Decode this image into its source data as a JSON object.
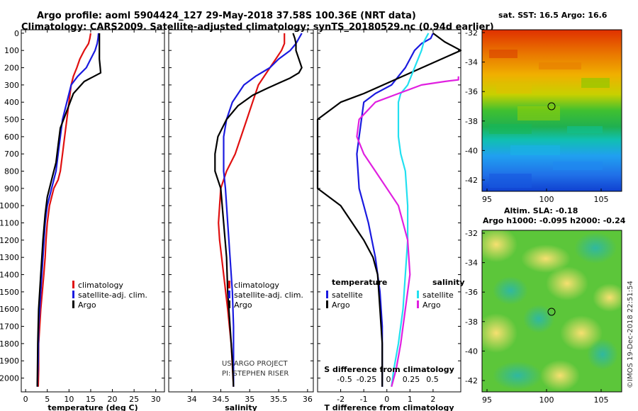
{
  "header": {
    "line1": "Argo profile: aoml 5904424_127 29-May-2018 37.58S 100.36E (NRT data)",
    "line2": "Climatology: CARS2009. Satellite-adjusted climatology: synTS_20180529.nc (0.94d earlier)"
  },
  "credit": {
    "line1": "US ARGO PROJECT",
    "line2": "PI: STEPHEN RISER",
    "watermark": "©IMOS 19-Dec-2018 22:51:54"
  },
  "colors": {
    "climatology": "#e01010",
    "satellite": "#1a1adf",
    "argo": "#000000",
    "cyan": "#22e0f0",
    "magenta": "#e020e0"
  },
  "chart_data": [
    {
      "id": "temperature",
      "type": "line",
      "xlabel": "temperature (deg C)",
      "xlim": [
        -1,
        32
      ],
      "ylim": [
        2080,
        -20
      ],
      "xticks": [
        0,
        5,
        10,
        15,
        20,
        25,
        30
      ],
      "yticks": [
        0,
        100,
        200,
        300,
        400,
        500,
        600,
        700,
        800,
        900,
        1000,
        1100,
        1200,
        1300,
        1400,
        1500,
        1600,
        1700,
        1800,
        1900,
        2000
      ],
      "legend": [
        "climatology",
        "satellite-adj. clim.",
        "Argo"
      ],
      "series": [
        {
          "name": "climatology",
          "color": "climatology",
          "x": [
            15,
            14.8,
            14.5,
            13.5,
            12.5,
            11.8,
            11,
            10.5,
            10,
            9.5,
            9,
            8.5,
            8,
            7.5,
            6.5,
            5.5,
            5,
            4.7,
            4.5,
            4.2,
            3.5,
            3,
            3,
            2.9
          ],
          "y": [
            0,
            30,
            60,
            100,
            150,
            200,
            250,
            300,
            400,
            500,
            600,
            700,
            800,
            850,
            900,
            1000,
            1100,
            1200,
            1300,
            1400,
            1600,
            1800,
            1950,
            2050
          ]
        },
        {
          "name": "satellite-adj. clim.",
          "color": "satellite",
          "x": [
            16.8,
            16.7,
            16.5,
            16,
            15,
            14,
            12,
            10.5,
            9.5,
            8.5,
            8,
            7.5,
            7,
            6.5,
            6,
            5,
            4.5,
            4,
            3.5,
            3,
            2.9,
            2.7
          ],
          "y": [
            0,
            30,
            60,
            100,
            150,
            200,
            250,
            300,
            400,
            500,
            600,
            700,
            800,
            850,
            900,
            1000,
            1100,
            1300,
            1500,
            1700,
            1900,
            2050
          ]
        },
        {
          "name": "Argo",
          "color": "argo",
          "x": [
            17,
            17,
            17,
            17,
            17.2,
            17.3,
            13.5,
            11,
            9.5,
            8,
            7.5,
            7,
            6,
            5,
            4.5,
            4,
            3.5,
            3,
            2.8,
            2.7
          ],
          "y": [
            0,
            40,
            100,
            150,
            200,
            230,
            280,
            350,
            450,
            550,
            650,
            750,
            850,
            950,
            1050,
            1200,
            1400,
            1600,
            1800,
            2050
          ]
        }
      ]
    },
    {
      "id": "salinity",
      "type": "line",
      "xlabel": "salinity",
      "xlim": [
        33.6,
        36.1
      ],
      "ylim": [
        2080,
        -20
      ],
      "xticks": [
        34,
        34.5,
        35,
        35.5,
        36
      ],
      "legend": [
        "climatology",
        "satellite-adj. clim.",
        "Argo"
      ],
      "series": [
        {
          "name": "climatology",
          "color": "climatology",
          "x": [
            35.6,
            35.6,
            35.6,
            35.55,
            35.45,
            35.35,
            35.25,
            35.15,
            35.05,
            34.95,
            34.85,
            34.75,
            34.6,
            34.5,
            34.48,
            34.46,
            34.48,
            34.55,
            34.62,
            34.68,
            34.72
          ],
          "y": [
            0,
            30,
            60,
            100,
            150,
            200,
            250,
            300,
            400,
            500,
            600,
            700,
            800,
            900,
            1000,
            1100,
            1200,
            1400,
            1600,
            1800,
            2050
          ]
        },
        {
          "name": "satellite-adj. clim.",
          "color": "satellite",
          "x": [
            35.9,
            35.85,
            35.8,
            35.7,
            35.5,
            35.35,
            35.1,
            34.9,
            34.7,
            34.6,
            34.55,
            34.55,
            34.55,
            34.58,
            34.6,
            34.62,
            34.66,
            34.7,
            34.72,
            34.72
          ],
          "y": [
            0,
            30,
            60,
            100,
            150,
            200,
            250,
            300,
            400,
            500,
            600,
            700,
            800,
            900,
            1000,
            1100,
            1300,
            1500,
            1700,
            2050
          ]
        },
        {
          "name": "Argo",
          "color": "argo",
          "x": [
            35.75,
            35.78,
            35.8,
            35.8,
            35.85,
            35.9,
            35.85,
            35.7,
            35.5,
            35.3,
            35.05,
            34.8,
            34.6,
            34.45,
            34.4,
            34.4,
            34.5,
            34.55,
            34.6,
            34.62,
            34.66,
            34.7,
            34.72
          ],
          "y": [
            0,
            30,
            60,
            100,
            150,
            200,
            230,
            260,
            290,
            320,
            360,
            420,
            500,
            600,
            700,
            800,
            900,
            1100,
            1300,
            1500,
            1700,
            1900,
            2050
          ]
        }
      ]
    },
    {
      "id": "difference",
      "type": "line",
      "xlabel": "T difference from climatology",
      "toplabel": "S difference from climatology",
      "xlim": [
        -3,
        3.2
      ],
      "ylim": [
        2080,
        -20
      ],
      "xticks": [
        -2,
        -1,
        0,
        1,
        2
      ],
      "s_ticks": [
        "-0.5",
        "-0.25",
        "0",
        "0.25",
        "0.5"
      ],
      "legend_title_left": "temperature",
      "legend_title_right": "salinity",
      "legend": [
        "satellite",
        "Argo",
        "satellite",
        "Argo"
      ],
      "series": [
        {
          "name": "T satellite",
          "color": "satellite",
          "x": [
            2,
            1.9,
            1.5,
            1.2,
            1,
            0.8,
            0.5,
            0.2,
            -0.5,
            -1,
            -1.1,
            -1.2,
            -1.3,
            -1.25,
            -1.2,
            -1,
            -0.8,
            -0.5,
            -0.3,
            -0.2,
            -0.2
          ],
          "y": [
            0,
            30,
            60,
            100,
            150,
            200,
            250,
            300,
            350,
            400,
            500,
            600,
            700,
            800,
            900,
            1000,
            1100,
            1300,
            1500,
            1700,
            2050
          ]
        },
        {
          "name": "T Argo",
          "color": "argo",
          "x": [
            2,
            2.5,
            3.2,
            -1,
            -2,
            -3,
            -3,
            -2,
            -1.5,
            -1,
            -0.6,
            -0.4,
            -0.3,
            -0.2,
            -0.2
          ],
          "y": [
            0,
            50,
            100,
            350,
            400,
            500,
            900,
            1000,
            1100,
            1200,
            1300,
            1400,
            1600,
            1800,
            2050
          ]
        },
        {
          "name": "S satellite",
          "color": "cyan",
          "x": [
            1.8,
            1.6,
            1.5,
            1.2,
            0.9,
            0.6,
            0.5,
            0.5,
            0.5,
            0.6,
            0.8,
            0.9,
            0.9,
            0.8,
            0.7,
            0.5,
            0.3,
            0.2
          ],
          "y": [
            0,
            50,
            100,
            200,
            300,
            350,
            400,
            500,
            600,
            700,
            800,
            1000,
            1200,
            1400,
            1600,
            1800,
            1950,
            2050
          ]
        },
        {
          "name": "S Argo",
          "color": "magenta",
          "x": [
            3.1,
            3.1,
            2.5,
            1.5,
            0.5,
            -0.5,
            -1.2,
            -1.3,
            -1,
            -0.5,
            0.5,
            0.9,
            1,
            0.8,
            0.6,
            0.4,
            0.2
          ],
          "y": [
            250,
            270,
            280,
            300,
            350,
            400,
            500,
            600,
            700,
            800,
            1000,
            1200,
            1400,
            1600,
            1800,
            1950,
            2050
          ]
        }
      ]
    }
  ],
  "maps": [
    {
      "id": "sst",
      "title": "sat. SST: 16.5 Argo: 16.6",
      "xticks": [
        "95",
        "100",
        "105"
      ],
      "yticks": [
        "-32",
        "-34",
        "-36",
        "-38",
        "-40",
        "-42"
      ]
    },
    {
      "id": "sla",
      "title1": "Altim. SLA: -0.18",
      "title2": "Argo h1000: -0.095 h2000: -0.24",
      "xticks": [
        "95",
        "100",
        "105"
      ],
      "yticks": [
        "-32",
        "-34",
        "-36",
        "-38",
        "-40",
        "-42"
      ]
    }
  ]
}
